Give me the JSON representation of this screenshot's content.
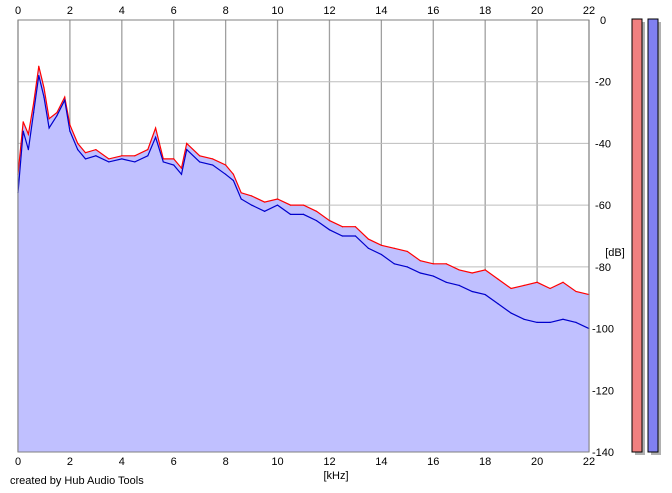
{
  "chart_data": {
    "type": "area",
    "xlabel": "[kHz]",
    "ylabel": "[dB]",
    "xlim": [
      0,
      22
    ],
    "ylim": [
      -140,
      0
    ],
    "x_ticks": [
      0,
      2,
      4,
      6,
      8,
      10,
      12,
      14,
      16,
      18,
      20,
      22
    ],
    "y_ticks": [
      0,
      -20,
      -40,
      -60,
      -80,
      -100,
      -120,
      -140
    ],
    "grid": true,
    "credit": "created by Hub Audio Tools",
    "series": [
      {
        "color": "#ff0000",
        "x": [
          0,
          0.2,
          0.4,
          0.6,
          0.8,
          1.0,
          1.2,
          1.5,
          1.8,
          2.0,
          2.3,
          2.6,
          3.0,
          3.5,
          4.0,
          4.5,
          5.0,
          5.3,
          5.6,
          6.0,
          6.3,
          6.5,
          7.0,
          7.5,
          8.0,
          8.3,
          8.6,
          9.0,
          9.5,
          10.0,
          10.5,
          11.0,
          11.5,
          12.0,
          12.5,
          13.0,
          13.5,
          14.0,
          14.5,
          15.0,
          15.5,
          16.0,
          16.5,
          17.0,
          17.5,
          18.0,
          18.5,
          19.0,
          19.5,
          20.0,
          20.5,
          21.0,
          21.5,
          22.0
        ],
        "y": [
          -50,
          -33,
          -37,
          -27,
          -15,
          -22,
          -32,
          -30,
          -25,
          -34,
          -40,
          -43,
          -42,
          -45,
          -44,
          -44,
          -42,
          -35,
          -45,
          -45,
          -48,
          -40,
          -44,
          -45,
          -47,
          -50,
          -56,
          -57,
          -59,
          -58,
          -60,
          -60,
          -62,
          -65,
          -67,
          -67,
          -71,
          -73,
          -74,
          -75,
          -78,
          -79,
          -79,
          -81,
          -82,
          -81,
          -84,
          -87,
          -86,
          -85,
          -87,
          -85,
          -88,
          -89
        ]
      },
      {
        "color": "#0000cc",
        "x": [
          0,
          0.2,
          0.4,
          0.6,
          0.8,
          1.0,
          1.2,
          1.5,
          1.8,
          2.0,
          2.3,
          2.6,
          3.0,
          3.5,
          4.0,
          4.5,
          5.0,
          5.3,
          5.6,
          6.0,
          6.3,
          6.5,
          7.0,
          7.5,
          8.0,
          8.3,
          8.6,
          9.0,
          9.5,
          10.0,
          10.5,
          11.0,
          11.5,
          12.0,
          12.5,
          13.0,
          13.5,
          14.0,
          14.5,
          15.0,
          15.5,
          16.0,
          16.5,
          17.0,
          17.5,
          18.0,
          18.5,
          19.0,
          19.5,
          20.0,
          20.5,
          21.0,
          21.5,
          22.0
        ],
        "y": [
          -56,
          -36,
          -42,
          -30,
          -18,
          -25,
          -35,
          -31,
          -26,
          -36,
          -42,
          -45,
          -44,
          -46,
          -45,
          -46,
          -44,
          -38,
          -46,
          -47,
          -50,
          -42,
          -46,
          -47,
          -50,
          -52,
          -58,
          -60,
          -62,
          -60,
          -63,
          -63,
          -65,
          -68,
          -70,
          -70,
          -74,
          -76,
          -79,
          -80,
          -82,
          -83,
          -85,
          -86,
          -88,
          -89,
          -92,
          -95,
          -97,
          -98,
          -98,
          -97,
          -98,
          -100
        ]
      }
    ],
    "level_meters": [
      {
        "color": "#f08080",
        "level": 1.0
      },
      {
        "color": "#8080f0",
        "level": 1.0
      }
    ],
    "colors": {
      "fill": "#c0c0ff",
      "grid": "#a0a0a0",
      "background": "#ffffff"
    }
  }
}
